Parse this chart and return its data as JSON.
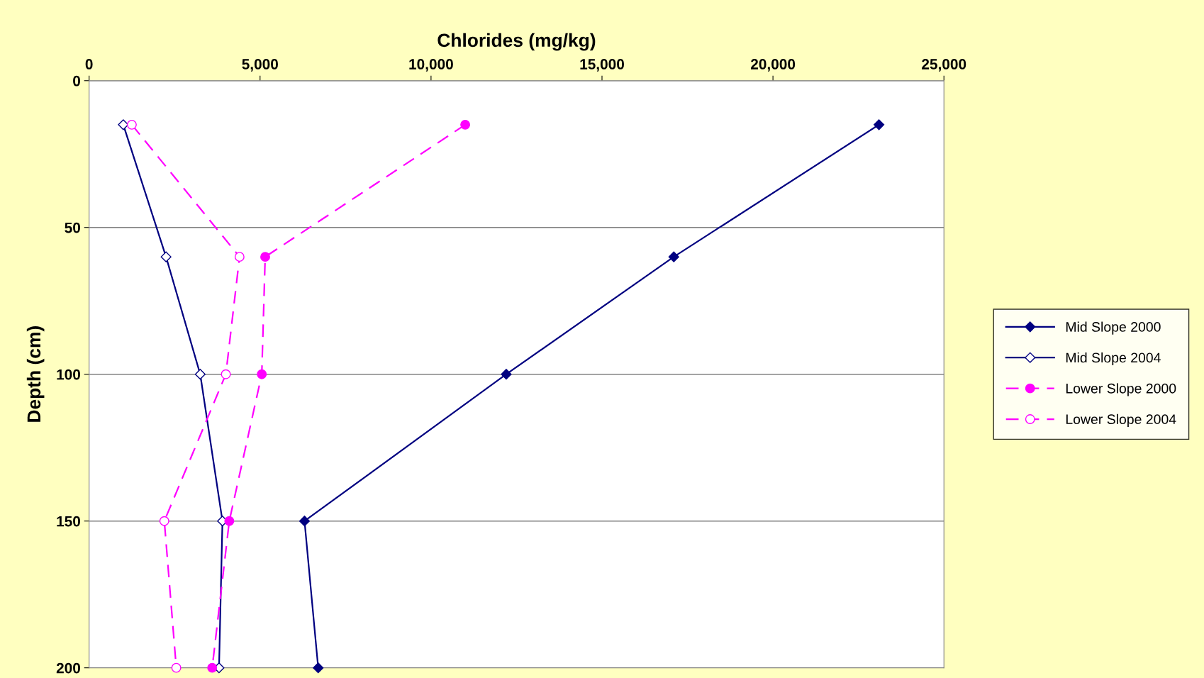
{
  "chart_data": {
    "type": "line",
    "orientation": "horizontal",
    "xlabel": "Chlorides (mg/kg)",
    "ylabel": "Depth (cm)",
    "x": [
      15,
      60,
      100,
      150,
      200
    ],
    "series": [
      {
        "name": "Mid Slope 2000",
        "color": "#000080",
        "marker": "diamond",
        "line_style": "solid",
        "values": [
          23100,
          17100,
          12200,
          6300,
          6700
        ]
      },
      {
        "name": "Mid Slope 2004",
        "color": "#000080",
        "marker": "diamond-open",
        "line_style": "solid",
        "values": [
          1000,
          2250,
          3250,
          3900,
          3800
        ]
      },
      {
        "name": "Lower Slope 2000",
        "color": "#ff00ff",
        "marker": "circle",
        "line_style": "dashed",
        "values": [
          11000,
          5150,
          5050,
          4100,
          3600
        ]
      },
      {
        "name": "Lower Slope 2004",
        "color": "#ff00ff",
        "marker": "circle-open",
        "line_style": "dashed",
        "values": [
          1250,
          4400,
          4000,
          2200,
          2550
        ]
      }
    ],
    "xlim": [
      0,
      25000
    ],
    "xticks": [
      {
        "value": 0,
        "label": "0"
      },
      {
        "value": 5000,
        "label": "5,000"
      },
      {
        "value": 10000,
        "label": "10,000"
      },
      {
        "value": 15000,
        "label": "15,000"
      },
      {
        "value": 20000,
        "label": "20,000"
      },
      {
        "value": 25000,
        "label": "25,000"
      }
    ],
    "ylim": [
      200,
      0
    ],
    "yticks": [
      0,
      50,
      100,
      150,
      200
    ],
    "grid": "y",
    "legend": "right"
  }
}
